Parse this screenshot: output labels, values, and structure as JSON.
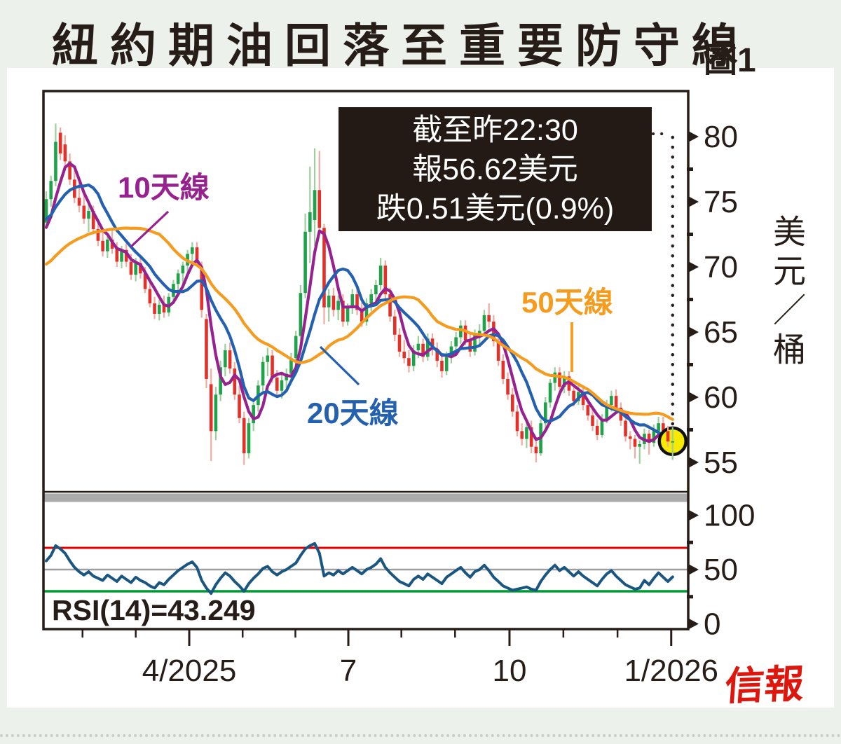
{
  "title": "紐約期油回落至重要防守線",
  "figure_label": "圖1",
  "info_box": {
    "line1": "截至昨22:30",
    "line2": "報56.62美元",
    "line3": "跌0.51美元(0.9%)"
  },
  "ma_labels": {
    "ma10": "10天線",
    "ma20": "20天線",
    "ma50": "50天線"
  },
  "unit_label": "美元／桶",
  "rsi_label": "RSI(14)=43.249",
  "logo": "信報",
  "colors": {
    "background": "#ecf1eb",
    "card": "#ffffff",
    "ink": "#271d18",
    "up_body": "#1fa24a",
    "up_wick": "#9ccf9c",
    "down_body": "#e3312a",
    "down_wick": "#f2aba0",
    "ma10": "#96218f",
    "ma20": "#2361b0",
    "ma50": "#f59b1e",
    "rsi_line": "#1a567f",
    "overbought_line": "#e60000",
    "mid_line": "#9e9e9e",
    "oversold_line": "#009933",
    "overbought_fill": "#f6c9ce",
    "marker_yellow": "#f6eb00",
    "separator_gray": "#ababab",
    "logo_red": "#dd170e"
  },
  "chart_data": {
    "type": "candlestick+rsi",
    "title": "紐約期油回落至重要防守線",
    "subtitle_lines": [
      "截至昨22:30",
      "報56.62美元",
      "跌0.51美元(0.9%)"
    ],
    "last": {
      "price": 56.62,
      "change": -0.51,
      "change_pct": -0.9,
      "as_of": "昨22:30"
    },
    "price_axis": {
      "unit": "美元／桶",
      "ticks": [
        80,
        75,
        70,
        65,
        60,
        55
      ],
      "minor_ticks": [
        77.5,
        72.5,
        67.5,
        62.5,
        57.5
      ],
      "range_shown": [
        52.7,
        83.5
      ]
    },
    "rsi_axis": {
      "ticks": [
        100,
        50,
        0
      ],
      "minor_ticks": [
        75,
        25
      ],
      "overbought": 70,
      "midline": 50,
      "oversold": 30,
      "label": "RSI(14)=43.249",
      "last_value": 43.249
    },
    "x_axis": {
      "major_ticks": [
        {
          "i": 30.36,
          "label": "4/2025"
        },
        {
          "i": 64.14,
          "label": "7"
        },
        {
          "i": 98.36,
          "label": "10"
        },
        {
          "i": 132.7,
          "label": "1/2026"
        }
      ],
      "minor_tick_i": [
        7.7,
        19.0,
        41.7,
        52.9,
        75.4,
        86.8,
        109.8,
        121.3
      ],
      "period": "2025-01 至 2026-01"
    },
    "moving_averages": [
      {
        "name": "10天線",
        "window": 5,
        "seed": 72.5,
        "color_key": "ma10"
      },
      {
        "name": "20天線",
        "window": 10,
        "seed": 73.5,
        "color_key": "ma20"
      },
      {
        "name": "50天線",
        "window": 25,
        "seed": 70.0,
        "color_key": "ma50"
      }
    ],
    "candles": [
      [
        73.4,
        75.8,
        72.9,
        75.2
      ],
      [
        75.2,
        77.0,
        74.6,
        76.6
      ],
      [
        76.6,
        81.0,
        76.2,
        79.6
      ],
      [
        80.3,
        80.7,
        78.2,
        78.7
      ],
      [
        79.4,
        80.1,
        77.6,
        78.1
      ],
      [
        78.1,
        78.7,
        76.3,
        76.7
      ],
      [
        76.7,
        77.4,
        74.9,
        75.3
      ],
      [
        75.3,
        76.5,
        74.2,
        74.7
      ],
      [
        74.7,
        75.6,
        73.3,
        73.7
      ],
      [
        73.7,
        74.9,
        72.7,
        74.3
      ],
      [
        74.3,
        74.7,
        72.5,
        72.9
      ],
      [
        72.9,
        73.5,
        71.6,
        72.0
      ],
      [
        72.0,
        72.7,
        70.8,
        71.2
      ],
      [
        71.2,
        72.4,
        70.7,
        72.1
      ],
      [
        72.1,
        72.9,
        71.0,
        71.4
      ],
      [
        71.4,
        71.9,
        70.0,
        70.4
      ],
      [
        70.4,
        71.6,
        69.9,
        71.3
      ],
      [
        71.3,
        71.8,
        70.0,
        70.4
      ],
      [
        70.4,
        71.0,
        69.0,
        69.4
      ],
      [
        69.4,
        70.7,
        68.9,
        70.3
      ],
      [
        70.3,
        70.8,
        69.1,
        69.5
      ],
      [
        69.5,
        70.0,
        68.0,
        68.3
      ],
      [
        68.3,
        68.8,
        66.9,
        67.2
      ],
      [
        67.2,
        67.7,
        66.0,
        66.4
      ],
      [
        66.4,
        67.5,
        65.9,
        67.1
      ],
      [
        67.1,
        67.8,
        66.1,
        66.5
      ],
      [
        66.5,
        68.0,
        66.2,
        67.7
      ],
      [
        67.7,
        69.0,
        67.3,
        68.7
      ],
      [
        68.7,
        69.8,
        68.1,
        69.5
      ],
      [
        69.5,
        70.4,
        68.7,
        70.1
      ],
      [
        70.1,
        71.3,
        69.6,
        71.0
      ],
      [
        71.0,
        71.9,
        70.2,
        71.5
      ],
      [
        71.5,
        71.9,
        70.1,
        70.5
      ],
      [
        70.0,
        70.4,
        66.1,
        66.7
      ],
      [
        66.0,
        66.4,
        60.7,
        61.4
      ],
      [
        61.0,
        62.2,
        55.1,
        57.4
      ],
      [
        57.4,
        60.8,
        56.7,
        60.2
      ],
      [
        60.2,
        62.8,
        59.7,
        62.3
      ],
      [
        62.3,
        64.1,
        61.6,
        63.6
      ],
      [
        63.6,
        64.2,
        61.8,
        62.2
      ],
      [
        62.2,
        62.7,
        59.8,
        60.2
      ],
      [
        60.2,
        60.9,
        58.0,
        58.4
      ],
      [
        58.4,
        58.9,
        54.8,
        55.7
      ],
      [
        55.7,
        58.4,
        55.3,
        58.0
      ],
      [
        58.0,
        59.9,
        57.4,
        59.4
      ],
      [
        59.4,
        61.3,
        58.9,
        60.9
      ],
      [
        60.9,
        63.1,
        60.3,
        62.7
      ],
      [
        62.7,
        63.8,
        61.6,
        63.2
      ],
      [
        63.2,
        63.6,
        61.1,
        61.5
      ],
      [
        61.5,
        62.1,
        60.0,
        60.5
      ],
      [
        60.5,
        61.7,
        59.9,
        61.3
      ],
      [
        61.3,
        62.2,
        60.4,
        61.8
      ],
      [
        61.8,
        63.4,
        61.3,
        63.0
      ],
      [
        63.0,
        65.1,
        62.5,
        64.7
      ],
      [
        64.7,
        68.6,
        64.3,
        68.0
      ],
      [
        68.0,
        74.1,
        67.6,
        72.7
      ],
      [
        72.7,
        77.7,
        70.3,
        74.2
      ],
      [
        73.6,
        79.1,
        71.6,
        75.9
      ],
      [
        75.9,
        78.9,
        72.6,
        73.0
      ],
      [
        73.0,
        73.3,
        65.6,
        66.9
      ],
      [
        66.9,
        68.3,
        65.8,
        67.8
      ],
      [
        67.8,
        68.4,
        66.2,
        66.7
      ],
      [
        66.7,
        67.8,
        65.9,
        67.4
      ],
      [
        67.4,
        67.9,
        65.4,
        65.8
      ],
      [
        65.8,
        67.2,
        65.5,
        66.9
      ],
      [
        66.9,
        68.3,
        66.4,
        67.9
      ],
      [
        67.9,
        68.4,
        66.3,
        66.7
      ],
      [
        66.7,
        67.3,
        65.4,
        65.8
      ],
      [
        65.8,
        67.6,
        65.5,
        67.2
      ],
      [
        67.2,
        68.3,
        66.6,
        67.9
      ],
      [
        67.9,
        69.0,
        67.3,
        68.6
      ],
      [
        68.6,
        70.7,
        68.2,
        70.1
      ],
      [
        70.1,
        70.5,
        67.4,
        67.9
      ],
      [
        67.9,
        68.4,
        65.8,
        66.2
      ],
      [
        66.2,
        66.7,
        64.3,
        64.8
      ],
      [
        64.8,
        65.3,
        63.1,
        63.5
      ],
      [
        63.5,
        64.4,
        62.6,
        63.0
      ],
      [
        63.0,
        63.6,
        61.9,
        62.4
      ],
      [
        62.4,
        64.0,
        62.0,
        63.6
      ],
      [
        63.6,
        64.7,
        63.0,
        64.1
      ],
      [
        64.1,
        64.5,
        62.7,
        63.1
      ],
      [
        63.1,
        64.9,
        62.8,
        64.5
      ],
      [
        64.5,
        64.9,
        63.2,
        63.7
      ],
      [
        63.7,
        64.2,
        62.3,
        62.8
      ],
      [
        62.8,
        63.3,
        61.5,
        62.0
      ],
      [
        62.0,
        63.5,
        61.7,
        63.1
      ],
      [
        63.1,
        64.3,
        62.6,
        63.9
      ],
      [
        63.9,
        65.0,
        63.3,
        64.6
      ],
      [
        64.6,
        65.9,
        64.1,
        65.5
      ],
      [
        65.5,
        65.9,
        64.0,
        64.4
      ],
      [
        64.4,
        64.9,
        63.1,
        63.5
      ],
      [
        63.5,
        65.2,
        63.2,
        64.8
      ],
      [
        64.8,
        65.6,
        64.1,
        65.1
      ],
      [
        65.1,
        66.7,
        64.7,
        66.3
      ],
      [
        66.3,
        67.2,
        65.3,
        65.8
      ],
      [
        65.8,
        66.3,
        63.9,
        64.3
      ],
      [
        64.3,
        64.8,
        62.4,
        62.8
      ],
      [
        62.8,
        63.3,
        61.0,
        61.4
      ],
      [
        61.4,
        61.9,
        59.8,
        60.2
      ],
      [
        60.2,
        60.7,
        58.5,
        58.9
      ],
      [
        58.9,
        59.4,
        57.0,
        57.4
      ],
      [
        57.4,
        58.0,
        56.3,
        56.8
      ],
      [
        56.8,
        58.1,
        56.1,
        57.7
      ],
      [
        57.7,
        58.2,
        55.7,
        56.2
      ],
      [
        56.2,
        56.7,
        55.0,
        55.7
      ],
      [
        55.7,
        58.3,
        55.5,
        58.0
      ],
      [
        58.0,
        60.0,
        57.6,
        59.6
      ],
      [
        59.6,
        61.4,
        59.2,
        61.1
      ],
      [
        61.1,
        62.3,
        60.5,
        61.9
      ],
      [
        61.9,
        62.3,
        60.4,
        60.8
      ],
      [
        60.8,
        62.0,
        60.3,
        61.6
      ],
      [
        61.6,
        62.0,
        60.1,
        60.5
      ],
      [
        60.5,
        61.0,
        59.3,
        59.7
      ],
      [
        59.7,
        60.9,
        59.4,
        60.4
      ],
      [
        60.4,
        60.8,
        59.0,
        59.4
      ],
      [
        59.4,
        59.9,
        58.2,
        58.6
      ],
      [
        58.6,
        59.1,
        57.4,
        57.8
      ],
      [
        57.8,
        58.3,
        56.7,
        57.1
      ],
      [
        57.1,
        58.7,
        56.9,
        58.3
      ],
      [
        58.3,
        59.8,
        58.0,
        59.4
      ],
      [
        59.4,
        60.5,
        58.9,
        60.1
      ],
      [
        60.1,
        60.6,
        58.8,
        59.2
      ],
      [
        59.2,
        59.6,
        57.8,
        58.2
      ],
      [
        58.2,
        58.6,
        56.6,
        57.0
      ],
      [
        57.0,
        57.4,
        56.0,
        56.8
      ],
      [
        56.8,
        57.1,
        55.3,
        56.2
      ],
      [
        56.2,
        56.7,
        54.9,
        56.4
      ],
      [
        56.4,
        57.6,
        56.0,
        57.2
      ],
      [
        57.2,
        57.5,
        55.6,
        56.5
      ],
      [
        56.5,
        57.9,
        56.2,
        57.4
      ],
      [
        57.4,
        58.5,
        57.0,
        58.0
      ],
      [
        58.0,
        58.5,
        57.0,
        57.4
      ],
      [
        57.4,
        57.8,
        56.2,
        56.6
      ],
      [
        56.6,
        57.7,
        55.2,
        56.62
      ]
    ],
    "rsi14": [
      58,
      63,
      72,
      69,
      65,
      58,
      52,
      48,
      45,
      48,
      44,
      42,
      40,
      45,
      42,
      39,
      44,
      41,
      38,
      43,
      40,
      38,
      35,
      33,
      38,
      36,
      41,
      45,
      49,
      52,
      55,
      57,
      52,
      40,
      33,
      28,
      36,
      42,
      47,
      44,
      39,
      35,
      30,
      37,
      42,
      46,
      51,
      53,
      48,
      45,
      48,
      50,
      53,
      56,
      63,
      69,
      72,
      74,
      65,
      44,
      47,
      45,
      49,
      46,
      49,
      52,
      49,
      46,
      50,
      52,
      55,
      60,
      52,
      47,
      43,
      39,
      37,
      35,
      41,
      44,
      41,
      46,
      43,
      40,
      37,
      43,
      46,
      49,
      52,
      47,
      43,
      48,
      50,
      54,
      49,
      43,
      39,
      35,
      33,
      31,
      32,
      33,
      34,
      32,
      31,
      39,
      45,
      50,
      54,
      49,
      52,
      48,
      44,
      48,
      44,
      41,
      38,
      35,
      41,
      46,
      49,
      44,
      40,
      36,
      34,
      32,
      33,
      40,
      36,
      42,
      47,
      43,
      39,
      43.2
    ]
  }
}
